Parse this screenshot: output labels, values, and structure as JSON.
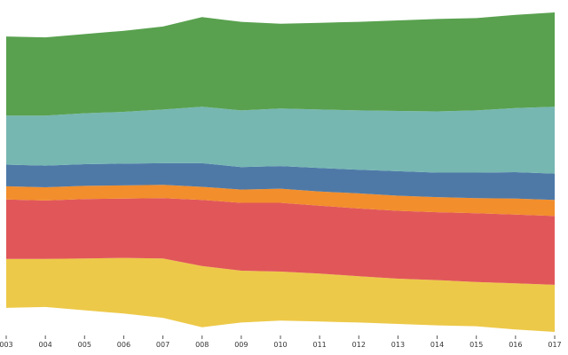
{
  "chart_data": {
    "type": "area",
    "stacked": true,
    "offset": "streamgraph",
    "x": [
      "2003",
      "2004",
      "2005",
      "2006",
      "2007",
      "2008",
      "2009",
      "2010",
      "2011",
      "2012",
      "2013",
      "2014",
      "2015",
      "2016",
      "2017"
    ],
    "tick_labels": [
      "003",
      "004",
      "005",
      "006",
      "007",
      "008",
      "009",
      "010",
      "011",
      "012",
      "013",
      "014",
      "015",
      "016",
      "017"
    ],
    "title": "",
    "xlabel": "",
    "ylabel": "",
    "grid": false,
    "legend": "none",
    "series": [
      {
        "color": "#edc949",
        "values": [
          52,
          51,
          55,
          59,
          63,
          65,
          55,
          52,
          51,
          49,
          48,
          48,
          47,
          49,
          50
        ]
      },
      {
        "color": "#e15759",
        "values": [
          63,
          62,
          63,
          63,
          64,
          70,
          72,
          73,
          72,
          72,
          72,
          72,
          73,
          73,
          73
        ]
      },
      {
        "color": "#f28e2c",
        "values": [
          14,
          14,
          14,
          14,
          14,
          14,
          14,
          15,
          15,
          16,
          16,
          16,
          16,
          17,
          17
        ]
      },
      {
        "color": "#4e79a7",
        "values": [
          23,
          23,
          23,
          23,
          23,
          25,
          24,
          24,
          25,
          25,
          26,
          26,
          27,
          28,
          28
        ]
      },
      {
        "color": "#76b7b2",
        "values": [
          52,
          53,
          54,
          55,
          57,
          60,
          60,
          61,
          62,
          63,
          64,
          65,
          66,
          68,
          71
        ]
      },
      {
        "color": "#59a14f",
        "values": [
          84,
          83,
          84,
          86,
          88,
          95,
          94,
          90,
          92,
          94,
          96,
          98,
          98,
          99,
          100
        ]
      }
    ]
  }
}
